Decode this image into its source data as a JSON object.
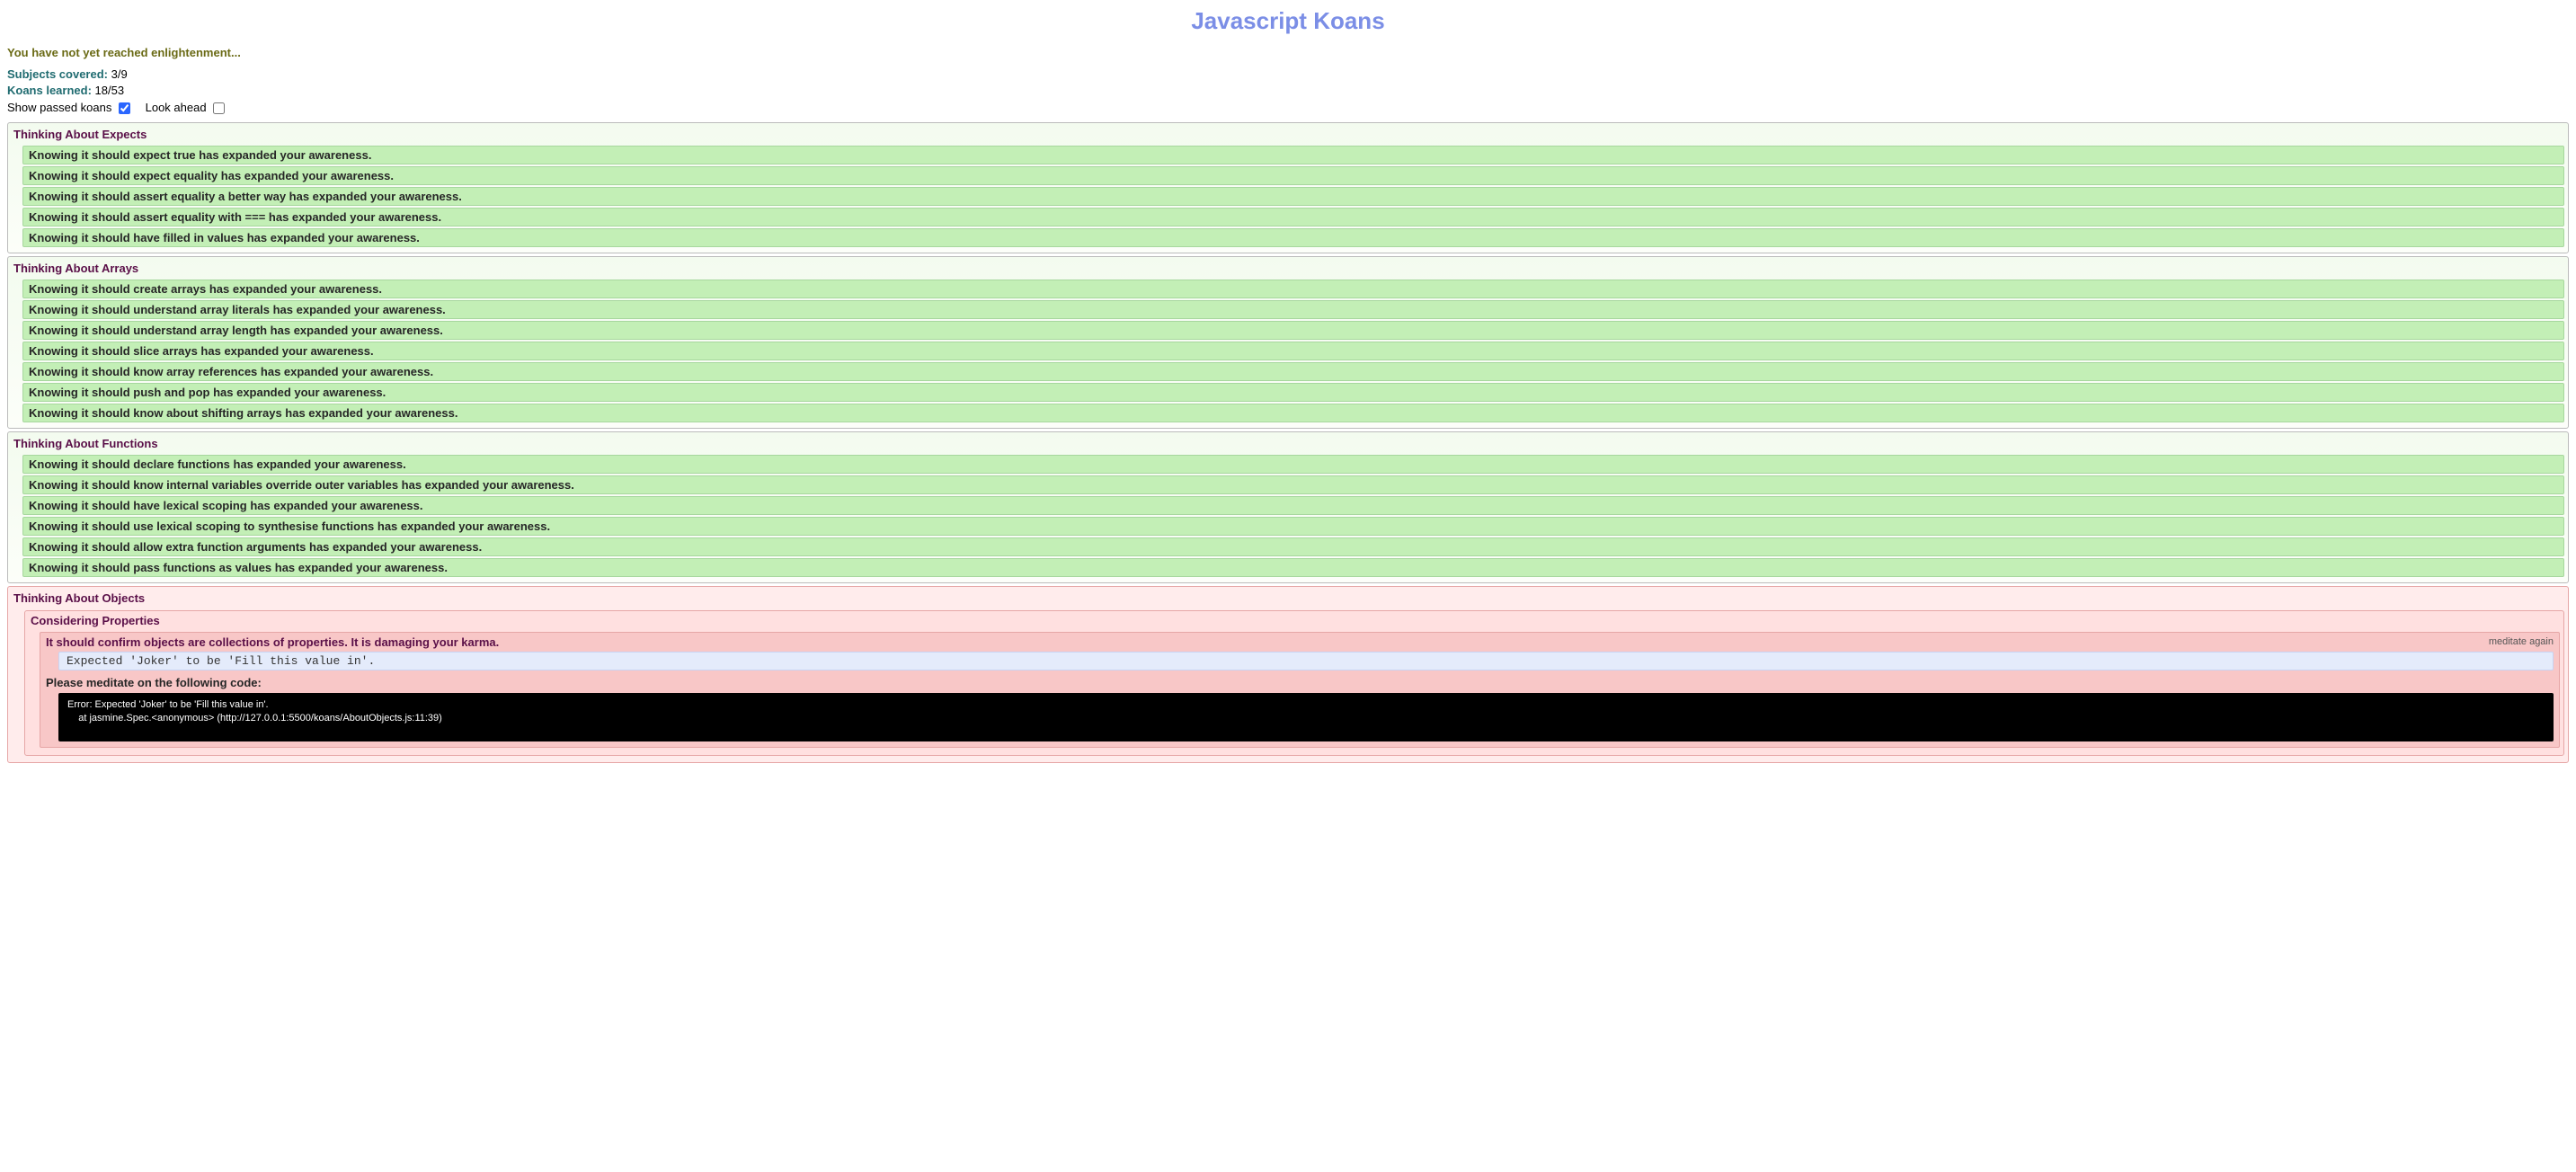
{
  "title": "Javascript Koans",
  "colors": {
    "title": "#7b8ee6",
    "enlightenment_text": "#6a6a15",
    "progress_label": "#1f6b70",
    "suite_title": "#5a0f48",
    "passed_bg": "#c3efb6",
    "passed_border": "#a7d79e",
    "failed_bg": "#f8c7c7",
    "failed_suite_bg": "#ffecec",
    "failed_subsuite_bg": "#ffe0e0",
    "expectation_bg": "#e4ebfb",
    "stack_bg": "#000000",
    "stack_fg": "#ffffff"
  },
  "header": {
    "enlightenment_msg": "You have not yet reached enlightenment...",
    "subjects_label": "Subjects covered:",
    "subjects_value": "3/9",
    "koans_label": "Koans learned:",
    "koans_value": "18/53",
    "show_passed_label": "Show passed koans",
    "show_passed_checked": true,
    "look_ahead_label": "Look ahead",
    "look_ahead_checked": false
  },
  "suites": [
    {
      "name": "Thinking About Expects",
      "status": "passed",
      "koans": [
        "Knowing it should expect true has expanded your awareness.",
        "Knowing it should expect equality has expanded your awareness.",
        "Knowing it should assert equality a better way has expanded your awareness.",
        "Knowing it should assert equality with === has expanded your awareness.",
        "Knowing it should have filled in values has expanded your awareness."
      ]
    },
    {
      "name": "Thinking About Arrays",
      "status": "passed",
      "koans": [
        "Knowing it should create arrays has expanded your awareness.",
        "Knowing it should understand array literals has expanded your awareness.",
        "Knowing it should understand array length has expanded your awareness.",
        "Knowing it should slice arrays has expanded your awareness.",
        "Knowing it should know array references has expanded your awareness.",
        "Knowing it should push and pop has expanded your awareness.",
        "Knowing it should know about shifting arrays has expanded your awareness."
      ]
    },
    {
      "name": "Thinking About Functions",
      "status": "passed",
      "koans": [
        "Knowing it should declare functions has expanded your awareness.",
        "Knowing it should know internal variables override outer variables has expanded your awareness.",
        "Knowing it should have lexical scoping has expanded your awareness.",
        "Knowing it should use lexical scoping to synthesise functions has expanded your awareness.",
        "Knowing it should allow extra function arguments has expanded your awareness.",
        "Knowing it should pass functions as values has expanded your awareness."
      ]
    }
  ],
  "failed_suite": {
    "name": "Thinking About Objects",
    "subsuite": "Considering Properties",
    "failed_koan": {
      "description": "It should confirm objects are collections of properties. It is damaging your karma.",
      "meditate_again": "meditate again",
      "expectation": "Expected 'Joker' to be 'Fill this value in'.",
      "meditate_label": "Please meditate on the following code:",
      "stack": "Error: Expected 'Joker' to be 'Fill this value in'.\n    at jasmine.Spec.<anonymous> (http://127.0.0.1:5500/koans/AboutObjects.js:11:39)"
    }
  }
}
